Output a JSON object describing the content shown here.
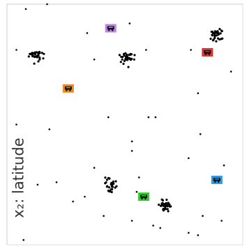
{
  "chart_data": {
    "type": "scatter",
    "title": "",
    "xlabel": "",
    "ylabel": "x₂: latitude",
    "xlim": [
      0,
      100
    ],
    "ylim": [
      0,
      100
    ],
    "grid": false,
    "colors": {
      "points": "#000000",
      "axes": "#cccccc",
      "label": "#333333"
    },
    "clusters": [
      {
        "center": [
          12,
          79
        ],
        "spread": 1.8,
        "count": 32
      },
      {
        "center": [
          51,
          77
        ],
        "spread": 1.8,
        "count": 32
      },
      {
        "center": [
          89,
          87
        ],
        "spread": 1.8,
        "count": 32
      },
      {
        "center": [
          44,
          25
        ],
        "spread": 1.8,
        "count": 32
      },
      {
        "center": [
          67,
          16
        ],
        "spread": 1.8,
        "count": 30
      }
    ],
    "points": [
      [
        8,
        98
      ],
      [
        17,
        100
      ],
      [
        34,
        88
      ],
      [
        52,
        92
      ],
      [
        4,
        81
      ],
      [
        37,
        77
      ],
      [
        59,
        81
      ],
      [
        78,
        81
      ],
      [
        95,
        72
      ],
      [
        81,
        63
      ],
      [
        43,
        53
      ],
      [
        60,
        53
      ],
      [
        63,
        53
      ],
      [
        4,
        50
      ],
      [
        18,
        48
      ],
      [
        82,
        46
      ],
      [
        53,
        43
      ],
      [
        53,
        39
      ],
      [
        77,
        36
      ],
      [
        37,
        32
      ],
      [
        92,
        33
      ],
      [
        13,
        25
      ],
      [
        21,
        26
      ],
      [
        28,
        18
      ],
      [
        33,
        20
      ],
      [
        55,
        22
      ],
      [
        56,
        28
      ],
      [
        41,
        12
      ],
      [
        53,
        10
      ],
      [
        62,
        8
      ],
      [
        65,
        7
      ],
      [
        83,
        12
      ],
      [
        91,
        10
      ],
      [
        77,
        5
      ],
      [
        81,
        4
      ],
      [
        7,
        2
      ]
    ],
    "markers": [
      {
        "name": "bus-icon",
        "color": "#c080e8",
        "x": 44,
        "y": 90
      },
      {
        "name": "bus-icon",
        "color": "#e03030",
        "x": 85,
        "y": 80
      },
      {
        "name": "bus-icon",
        "color": "#f08c1a",
        "x": 26,
        "y": 65
      },
      {
        "name": "bus-icon",
        "color": "#3399dd",
        "x": 89,
        "y": 27
      },
      {
        "name": "bus-icon",
        "color": "#33cc33",
        "x": 58,
        "y": 20
      }
    ]
  }
}
